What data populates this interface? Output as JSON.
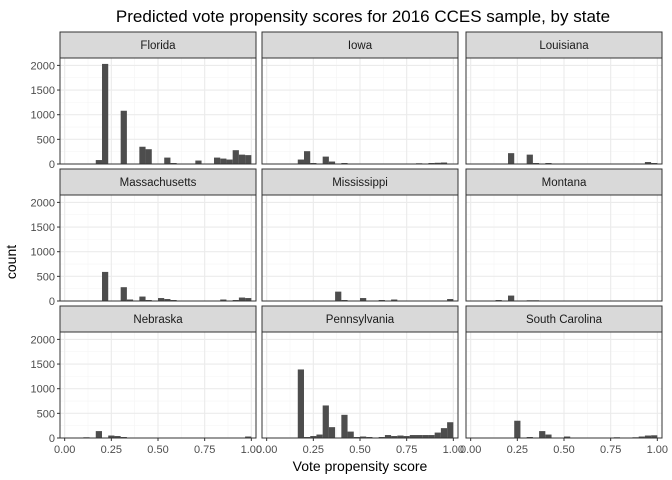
{
  "chart_data": {
    "type": "bar",
    "title": "Predicted vote propensity scores for 2016 CCES sample, by state",
    "xlabel": "Vote propensity score",
    "ylabel": "count",
    "xlim": [
      -0.025,
      1.025
    ],
    "ylim": [
      0,
      2150
    ],
    "x_ticks": [
      0,
      0.25,
      0.5,
      0.75,
      1
    ],
    "x_tick_labels": [
      "0.00",
      "0.25",
      "0.50",
      "0.75",
      "1.00"
    ],
    "y_ticks": [
      0,
      500,
      1000,
      1500,
      2000
    ],
    "y_tick_labels": [
      "0",
      "500",
      "1000",
      "1500",
      "2000"
    ],
    "bin_width": 0.0333,
    "grid": true,
    "panels": [
      {
        "name": "Florida",
        "bins": [
          [
            0.1833,
            80
          ],
          [
            0.2167,
            2030
          ],
          [
            0.25,
            10
          ],
          [
            0.3167,
            1080
          ],
          [
            0.35,
            10
          ],
          [
            0.4167,
            350
          ],
          [
            0.45,
            300
          ],
          [
            0.55,
            130
          ],
          [
            0.5833,
            20
          ],
          [
            0.6167,
            10
          ],
          [
            0.7167,
            70
          ],
          [
            0.8167,
            130
          ],
          [
            0.85,
            110
          ],
          [
            0.8833,
            90
          ],
          [
            0.9167,
            280
          ],
          [
            0.95,
            190
          ],
          [
            0.9833,
            180
          ]
        ]
      },
      {
        "name": "Iowa",
        "bins": [
          [
            0.1833,
            90
          ],
          [
            0.2167,
            260
          ],
          [
            0.25,
            20
          ],
          [
            0.3167,
            150
          ],
          [
            0.35,
            50
          ],
          [
            0.4167,
            20
          ],
          [
            0.5167,
            10
          ],
          [
            0.55,
            10
          ],
          [
            0.6833,
            10
          ],
          [
            0.8167,
            15
          ],
          [
            0.8833,
            20
          ],
          [
            0.9167,
            25
          ],
          [
            0.95,
            30
          ]
        ]
      },
      {
        "name": "Louisiana",
        "bins": [
          [
            0.1167,
            10
          ],
          [
            0.15,
            5
          ],
          [
            0.2167,
            220
          ],
          [
            0.25,
            10
          ],
          [
            0.3167,
            190
          ],
          [
            0.35,
            20
          ],
          [
            0.4167,
            20
          ],
          [
            0.45,
            10
          ],
          [
            0.55,
            5
          ],
          [
            0.6167,
            5
          ],
          [
            0.7833,
            10
          ],
          [
            0.85,
            5
          ],
          [
            0.95,
            40
          ],
          [
            0.9833,
            20
          ]
        ]
      },
      {
        "name": "Massachusetts",
        "bins": [
          [
            0.1833,
            5
          ],
          [
            0.2167,
            590
          ],
          [
            0.25,
            10
          ],
          [
            0.3167,
            280
          ],
          [
            0.35,
            30
          ],
          [
            0.4167,
            90
          ],
          [
            0.45,
            20
          ],
          [
            0.5167,
            60
          ],
          [
            0.55,
            40
          ],
          [
            0.5833,
            20
          ],
          [
            0.6167,
            10
          ],
          [
            0.6833,
            10
          ],
          [
            0.7833,
            10
          ],
          [
            0.85,
            30
          ],
          [
            0.8833,
            10
          ],
          [
            0.9167,
            20
          ],
          [
            0.95,
            70
          ],
          [
            0.9833,
            60
          ]
        ]
      },
      {
        "name": "Mississippi",
        "bins": [
          [
            0.3833,
            190
          ],
          [
            0.4167,
            20
          ],
          [
            0.45,
            10
          ],
          [
            0.5167,
            60
          ],
          [
            0.55,
            5
          ],
          [
            0.6167,
            20
          ],
          [
            0.6833,
            30
          ],
          [
            0.7833,
            10
          ],
          [
            0.8167,
            10
          ],
          [
            0.85,
            10
          ],
          [
            0.8833,
            10
          ],
          [
            0.9167,
            10
          ],
          [
            0.95,
            10
          ],
          [
            0.9833,
            40
          ]
        ]
      },
      {
        "name": "Montana",
        "bins": [
          [
            0.1167,
            10
          ],
          [
            0.15,
            20
          ],
          [
            0.2167,
            110
          ],
          [
            0.25,
            10
          ],
          [
            0.3167,
            15
          ],
          [
            0.35,
            15
          ],
          [
            0.4167,
            10
          ],
          [
            0.5167,
            10
          ],
          [
            0.55,
            10
          ],
          [
            0.6833,
            10
          ],
          [
            0.7167,
            5
          ],
          [
            0.8167,
            10
          ],
          [
            0.95,
            10
          ],
          [
            0.9833,
            10
          ]
        ]
      },
      {
        "name": "Nebraska",
        "bins": [
          [
            0.1167,
            15
          ],
          [
            0.1833,
            140
          ],
          [
            0.25,
            50
          ],
          [
            0.2833,
            40
          ],
          [
            0.3167,
            20
          ],
          [
            0.35,
            5
          ],
          [
            0.4167,
            10
          ],
          [
            0.45,
            10
          ],
          [
            0.55,
            5
          ],
          [
            0.6167,
            5
          ],
          [
            0.7167,
            5
          ],
          [
            0.85,
            5
          ],
          [
            0.95,
            5
          ],
          [
            0.9833,
            30
          ]
        ]
      },
      {
        "name": "Pennsylvania",
        "bins": [
          [
            0.1833,
            1390
          ],
          [
            0.2167,
            20
          ],
          [
            0.25,
            40
          ],
          [
            0.2833,
            70
          ],
          [
            0.3167,
            660
          ],
          [
            0.35,
            220
          ],
          [
            0.4167,
            470
          ],
          [
            0.45,
            130
          ],
          [
            0.4833,
            20
          ],
          [
            0.5167,
            30
          ],
          [
            0.55,
            20
          ],
          [
            0.6167,
            20
          ],
          [
            0.65,
            60
          ],
          [
            0.6833,
            40
          ],
          [
            0.7167,
            50
          ],
          [
            0.75,
            40
          ],
          [
            0.7833,
            60
          ],
          [
            0.8167,
            60
          ],
          [
            0.85,
            60
          ],
          [
            0.8833,
            60
          ],
          [
            0.9167,
            110
          ],
          [
            0.95,
            200
          ],
          [
            0.9833,
            320
          ]
        ]
      },
      {
        "name": "South Carolina",
        "bins": [
          [
            0.1167,
            10
          ],
          [
            0.15,
            5
          ],
          [
            0.2167,
            10
          ],
          [
            0.25,
            350
          ],
          [
            0.2833,
            10
          ],
          [
            0.3167,
            20
          ],
          [
            0.35,
            10
          ],
          [
            0.3833,
            140
          ],
          [
            0.4167,
            70
          ],
          [
            0.4833,
            10
          ],
          [
            0.5167,
            30
          ],
          [
            0.55,
            5
          ],
          [
            0.6167,
            5
          ],
          [
            0.7167,
            5
          ],
          [
            0.75,
            5
          ],
          [
            0.7833,
            15
          ],
          [
            0.8167,
            10
          ],
          [
            0.85,
            10
          ],
          [
            0.8833,
            15
          ],
          [
            0.9167,
            30
          ],
          [
            0.95,
            50
          ],
          [
            0.9833,
            55
          ]
        ]
      }
    ]
  },
  "colors": {
    "background": "#ffffff",
    "strip_fill": "#d9d9d9",
    "panel_border": "#333333",
    "grid_major": "#ebebeb",
    "grid_minor": "#f5f5f5",
    "bar": "#4d4d4d"
  }
}
